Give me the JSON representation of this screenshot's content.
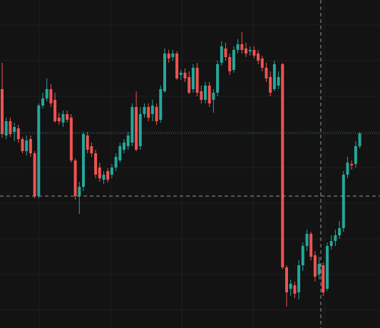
{
  "chart_data": {
    "type": "candlestick",
    "up_color": "#26a69a",
    "down_color": "#ef5350",
    "ylim": [
      0,
      460
    ],
    "grid": true,
    "last_price_line": true,
    "open": [
      335,
      270,
      290,
      275,
      280,
      265,
      248,
      265,
      245,
      185,
      312,
      322,
      335,
      320,
      295,
      288,
      300,
      295,
      235,
      185,
      198,
      270,
      255,
      245,
      225,
      208,
      220,
      215,
      225,
      235,
      250,
      255,
      260,
      310,
      255,
      300,
      310,
      300,
      310,
      292,
      332,
      385,
      380,
      385,
      355,
      358,
      352,
      335,
      365,
      332,
      320,
      340,
      320,
      330,
      372,
      392,
      380,
      362,
      390,
      398,
      392,
      388,
      390,
      385,
      378,
      365,
      352,
      335,
      340,
      370,
      85,
      55,
      60,
      50,
      88,
      115,
      132,
      102,
      75,
      88,
      55,
      115,
      122,
      130,
      140,
      215,
      230,
      230,
      255
    ],
    "high": [
      372,
      295,
      295,
      288,
      285,
      268,
      270,
      270,
      248,
      315,
      330,
      350,
      342,
      330,
      302,
      305,
      305,
      300,
      238,
      205,
      275,
      275,
      260,
      250,
      232,
      220,
      224,
      230,
      245,
      260,
      265,
      275,
      315,
      332,
      310,
      315,
      315,
      320,
      315,
      340,
      392,
      390,
      390,
      388,
      362,
      364,
      360,
      370,
      372,
      340,
      345,
      345,
      335,
      375,
      402,
      400,
      385,
      395,
      405,
      415,
      400,
      395,
      395,
      390,
      382,
      372,
      360,
      375,
      360,
      372,
      88,
      68,
      65,
      95,
      120,
      138,
      135,
      108,
      100,
      92,
      120,
      130,
      138,
      150,
      220,
      240,
      235,
      262,
      275
    ],
    "low": [
      267,
      265,
      268,
      262,
      260,
      245,
      242,
      240,
      182,
      182,
      308,
      318,
      310,
      288,
      285,
      282,
      288,
      232,
      180,
      160,
      192,
      245,
      240,
      210,
      205,
      202,
      204,
      210,
      220,
      232,
      245,
      250,
      255,
      248,
      250,
      295,
      290,
      290,
      285,
      288,
      330,
      372,
      375,
      348,
      348,
      345,
      328,
      330,
      325,
      315,
      315,
      310,
      302,
      325,
      368,
      375,
      355,
      358,
      385,
      385,
      380,
      382,
      378,
      370,
      360,
      345,
      325,
      332,
      335,
      82,
      30,
      45,
      42,
      40,
      80,
      108,
      95,
      65,
      68,
      45,
      52,
      110,
      115,
      125,
      135,
      210,
      222,
      225,
      252
    ],
    "close": [
      272,
      290,
      272,
      282,
      265,
      248,
      263,
      245,
      185,
      312,
      322,
      335,
      315,
      290,
      290,
      300,
      292,
      235,
      185,
      198,
      272,
      250,
      245,
      215,
      210,
      215,
      208,
      225,
      240,
      255,
      260,
      270,
      310,
      250,
      300,
      310,
      295,
      312,
      290,
      335,
      385,
      378,
      385,
      350,
      358,
      350,
      330,
      365,
      330,
      320,
      340,
      315,
      330,
      370,
      395,
      380,
      360,
      390,
      398,
      390,
      385,
      390,
      382,
      375,
      365,
      350,
      330,
      370,
      352,
      85,
      50,
      62,
      48,
      88,
      115,
      132,
      100,
      72,
      90,
      50,
      115,
      122,
      130,
      140,
      215,
      232,
      228,
      255,
      273
    ]
  }
}
